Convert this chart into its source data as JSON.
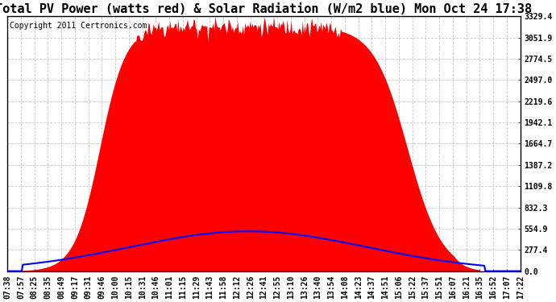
{
  "title": "Total PV Power (watts red) & Solar Radiation (W/m2 blue) Mon Oct 24 17:38",
  "copyright": "Copyright 2011 Certronics.com",
  "background_color": "#ffffff",
  "plot_bg_color": "#ffffff",
  "grid_color": "#c8c8c8",
  "ytick_labels": [
    "0.0",
    "277.4",
    "554.9",
    "832.3",
    "1109.8",
    "1387.2",
    "1664.7",
    "1942.1",
    "2219.6",
    "2497.0",
    "2774.5",
    "3051.9",
    "3329.4"
  ],
  "ytick_values": [
    0.0,
    277.4,
    554.9,
    832.3,
    1109.8,
    1387.2,
    1664.7,
    1942.1,
    2219.6,
    2497.0,
    2774.5,
    3051.9,
    3329.4
  ],
  "ymax": 3329.4,
  "ymin": 0.0,
  "xtick_labels": [
    "07:38",
    "07:57",
    "08:25",
    "08:35",
    "08:49",
    "09:17",
    "09:31",
    "09:46",
    "10:00",
    "10:15",
    "10:31",
    "10:46",
    "11:01",
    "11:15",
    "11:29",
    "11:43",
    "11:58",
    "12:12",
    "12:26",
    "12:41",
    "12:55",
    "13:10",
    "13:26",
    "13:40",
    "13:54",
    "14:08",
    "14:23",
    "14:37",
    "14:51",
    "15:06",
    "15:22",
    "15:37",
    "15:51",
    "16:07",
    "16:21",
    "16:35",
    "16:52",
    "17:07",
    "17:22"
  ],
  "fill_color_red": "#ff0000",
  "line_color_blue": "#0000ff",
  "title_fontsize": 11,
  "tick_fontsize": 7,
  "copyright_fontsize": 7
}
